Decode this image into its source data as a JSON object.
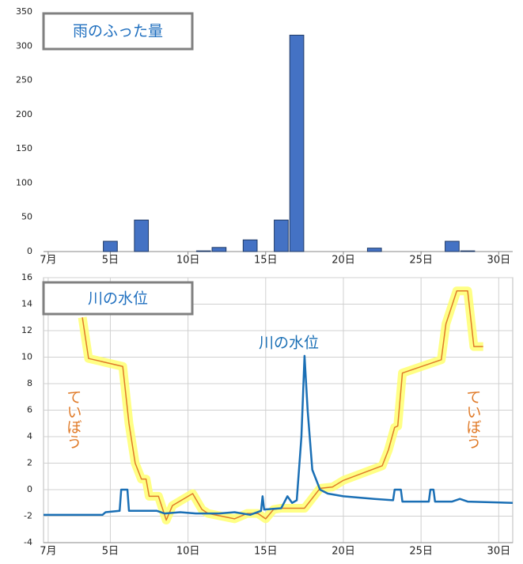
{
  "chart_data": [
    {
      "type": "bar",
      "title": "雨のふった量",
      "x": [
        5,
        7,
        11,
        12,
        14,
        16,
        17,
        22,
        27,
        28
      ],
      "values": [
        15,
        46,
        1,
        6,
        17,
        46,
        316,
        5,
        15,
        1
      ],
      "color": "#4472c4",
      "xlim": [
        0.7,
        30.9
      ],
      "xticks": [
        {
          "value": 1,
          "label": "7月"
        },
        {
          "value": 5,
          "label": "5日"
        },
        {
          "value": 10,
          "label": "10日"
        },
        {
          "value": 15,
          "label": "15日"
        },
        {
          "value": 20,
          "label": "20日"
        },
        {
          "value": 25,
          "label": "25日"
        },
        {
          "value": 30,
          "label": "30日"
        }
      ],
      "ylim": [
        0,
        350
      ],
      "yticks": [
        0,
        50,
        100,
        150,
        200,
        250,
        300,
        350
      ],
      "grid": false
    },
    {
      "type": "line",
      "title": "川の水位",
      "series": [
        {
          "name": "川の水位",
          "color": "#1a6fb5",
          "x": [
            0.7,
            4.5,
            4.7,
            5.6,
            5.7,
            6.1,
            6.2,
            8,
            8.5,
            9.5,
            10.5,
            12,
            13,
            14,
            14.7,
            14.8,
            14.9,
            16,
            16.4,
            16.7,
            17,
            17.3,
            17.5,
            17.7,
            18,
            18.5,
            19,
            20,
            22,
            23.2,
            23.3,
            23.7,
            23.8,
            25.5,
            25.6,
            25.8,
            25.9,
            27,
            27.5,
            28,
            30.9
          ],
          "values": [
            -1.9,
            -1.9,
            -1.7,
            -1.6,
            0,
            0,
            -1.6,
            -1.6,
            -1.8,
            -1.7,
            -1.8,
            -1.8,
            -1.7,
            -1.9,
            -1.6,
            -0.5,
            -1.5,
            -1.4,
            -0.5,
            -1,
            -0.8,
            4,
            10.1,
            6,
            1.5,
            0,
            -0.3,
            -0.5,
            -0.7,
            -0.8,
            0,
            0,
            -0.9,
            -0.9,
            0,
            0,
            -0.9,
            -0.9,
            -0.7,
            -0.9,
            -1
          ]
        },
        {
          "name": "ていぼう",
          "color": "#e07b2a",
          "x": [
            3.2,
            3.6,
            5.8,
            6.2,
            6.6,
            7,
            7.3,
            7.5,
            8.1,
            8.6,
            9,
            10.3,
            10.9,
            11.3,
            13,
            13.8,
            14.5,
            15,
            15.5,
            16,
            17.5,
            18.5,
            19.3,
            20,
            22.5,
            22.9,
            23.3,
            23.5,
            23.8,
            26.3,
            26.6,
            27.3,
            28,
            28.4,
            29
          ],
          "values": [
            13,
            9.9,
            9.3,
            5,
            2,
            0.8,
            0.8,
            -0.5,
            -0.5,
            -2.3,
            -1.2,
            -0.3,
            -1.5,
            -1.8,
            -2.2,
            -1.8,
            -1.8,
            -2.2,
            -1.5,
            -1.4,
            -1.4,
            0.1,
            0.2,
            0.7,
            1.8,
            3,
            4.7,
            4.8,
            8.8,
            9.8,
            12.5,
            15,
            15,
            10.8,
            10.8
          ]
        }
      ],
      "annotations": [
        "ていぼう"
      ],
      "xlim": [
        0.7,
        30.9
      ],
      "xticks": [
        {
          "value": 1,
          "label": "7月"
        },
        {
          "value": 5,
          "label": "5日"
        },
        {
          "value": 10,
          "label": "10日"
        },
        {
          "value": 15,
          "label": "15日"
        },
        {
          "value": 20,
          "label": "20日"
        },
        {
          "value": 25,
          "label": "25日"
        },
        {
          "value": 30,
          "label": "30日"
        }
      ],
      "ylim": [
        -4,
        16
      ],
      "yticks": [
        -4,
        -2,
        0,
        2,
        4,
        6,
        8,
        10,
        12,
        14,
        16
      ],
      "grid": true
    }
  ]
}
